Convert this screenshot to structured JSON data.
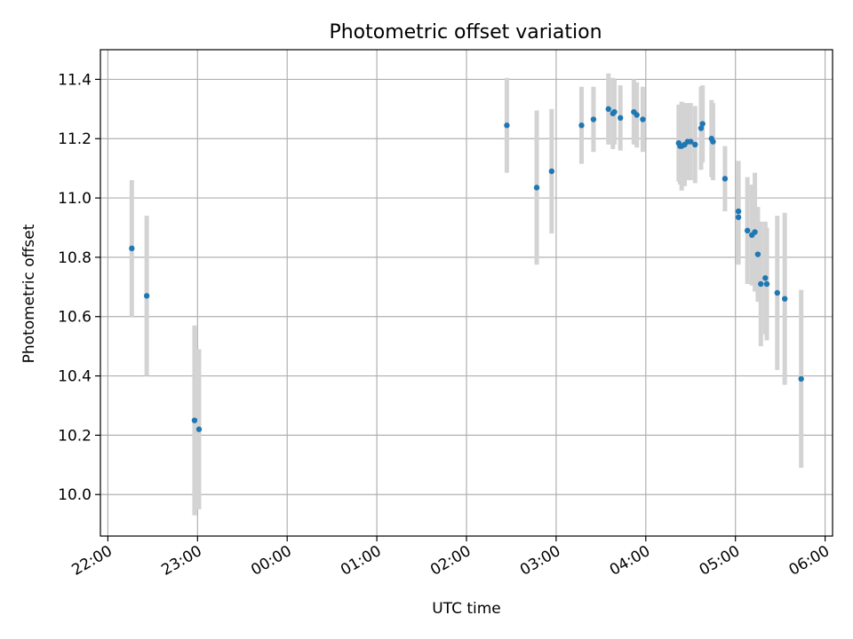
{
  "chart_data": {
    "type": "scatter",
    "title": "Photometric offset variation",
    "xlabel": "UTC time",
    "ylabel": "Photometric offset",
    "x_axis_kind": "time (HH:MM, hours after 22:00 UTC)",
    "xlim": [
      "21:55",
      "06:05"
    ],
    "ylim": [
      9.86,
      11.5
    ],
    "x_tick_labels": [
      "22:00",
      "23:00",
      "00:00",
      "01:00",
      "02:00",
      "03:00",
      "04:00",
      "05:00",
      "06:00"
    ],
    "y_tick_labels": [
      "10.0",
      "10.2",
      "10.4",
      "10.6",
      "10.8",
      "11.0",
      "11.2",
      "11.4"
    ],
    "grid": true,
    "marker_color": "#1f77b4",
    "errorbar_color": "#d3d3d3",
    "points": [
      {
        "time": "22:16",
        "y": 10.83,
        "err": 0.23
      },
      {
        "time": "22:26",
        "y": 10.67,
        "err": 0.27
      },
      {
        "time": "22:58",
        "y": 10.25,
        "err": 0.32
      },
      {
        "time": "23:01",
        "y": 10.22,
        "err": 0.27
      },
      {
        "time": "02:27",
        "y": 11.245,
        "err": 0.16
      },
      {
        "time": "02:47",
        "y": 11.035,
        "err": 0.26
      },
      {
        "time": "02:57",
        "y": 11.09,
        "err": 0.21
      },
      {
        "time": "03:17",
        "y": 11.245,
        "err": 0.13
      },
      {
        "time": "03:25",
        "y": 11.265,
        "err": 0.11
      },
      {
        "time": "03:35",
        "y": 11.3,
        "err": 0.12
      },
      {
        "time": "03:38",
        "y": 11.285,
        "err": 0.12
      },
      {
        "time": "03:39",
        "y": 11.29,
        "err": 0.11
      },
      {
        "time": "03:43",
        "y": 11.27,
        "err": 0.11
      },
      {
        "time": "03:52",
        "y": 11.29,
        "err": 0.11
      },
      {
        "time": "03:54",
        "y": 11.28,
        "err": 0.11
      },
      {
        "time": "03:58",
        "y": 11.265,
        "err": 0.11
      },
      {
        "time": "04:22",
        "y": 11.185,
        "err": 0.13
      },
      {
        "time": "04:23",
        "y": 11.175,
        "err": 0.13
      },
      {
        "time": "04:24",
        "y": 11.175,
        "err": 0.15
      },
      {
        "time": "04:26",
        "y": 11.18,
        "err": 0.14
      },
      {
        "time": "04:28",
        "y": 11.19,
        "err": 0.13
      },
      {
        "time": "04:30",
        "y": 11.19,
        "err": 0.13
      },
      {
        "time": "04:33",
        "y": 11.18,
        "err": 0.13
      },
      {
        "time": "04:37",
        "y": 11.235,
        "err": 0.14
      },
      {
        "time": "04:38",
        "y": 11.25,
        "err": 0.13
      },
      {
        "time": "04:44",
        "y": 11.2,
        "err": 0.13
      },
      {
        "time": "04:45",
        "y": 11.19,
        "err": 0.13
      },
      {
        "time": "04:53",
        "y": 11.065,
        "err": 0.11
      },
      {
        "time": "05:02",
        "y": 10.955,
        "err": 0.17
      },
      {
        "time": "05:02",
        "y": 10.935,
        "err": 0.16
      },
      {
        "time": "05:08",
        "y": 10.89,
        "err": 0.18
      },
      {
        "time": "05:11",
        "y": 10.875,
        "err": 0.17
      },
      {
        "time": "05:13",
        "y": 10.885,
        "err": 0.2
      },
      {
        "time": "05:15",
        "y": 10.81,
        "err": 0.16
      },
      {
        "time": "05:17",
        "y": 10.71,
        "err": 0.21
      },
      {
        "time": "05:20",
        "y": 10.73,
        "err": 0.19
      },
      {
        "time": "05:21",
        "y": 10.71,
        "err": 0.19
      },
      {
        "time": "05:28",
        "y": 10.68,
        "err": 0.26
      },
      {
        "time": "05:33",
        "y": 10.66,
        "err": 0.29
      },
      {
        "time": "05:44",
        "y": 10.39,
        "err": 0.3
      }
    ]
  }
}
